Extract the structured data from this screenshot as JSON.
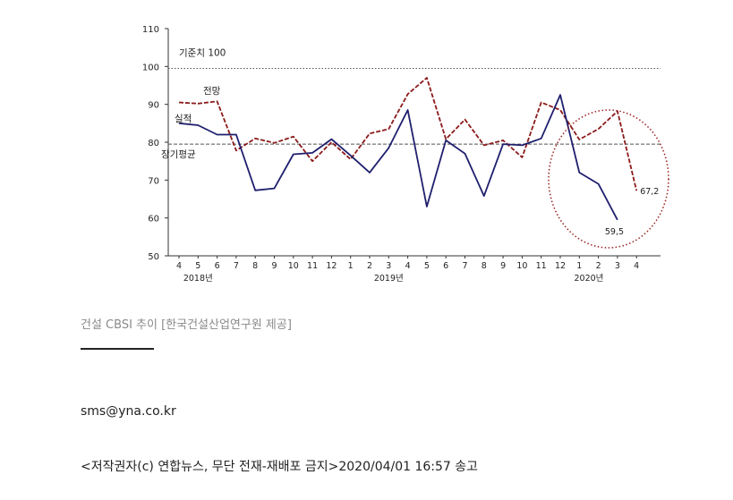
{
  "chart_data": {
    "type": "line",
    "categories": [
      "4",
      "5",
      "6",
      "7",
      "8",
      "9",
      "10",
      "11",
      "12",
      "1",
      "2",
      "3",
      "4",
      "5",
      "6",
      "7",
      "8",
      "9",
      "10",
      "11",
      "12",
      "1",
      "2",
      "3",
      "4"
    ],
    "year_labels": [
      {
        "label": "2018년",
        "index": 1
      },
      {
        "label": "2019년",
        "index": 11
      },
      {
        "label": "2020년",
        "index": 21.5
      }
    ],
    "ylim": [
      50,
      110
    ],
    "yticks": [
      50,
      60,
      70,
      80,
      90,
      100,
      110
    ],
    "series": [
      {
        "name": "실적",
        "style": "solid",
        "color": "#1f1f6e",
        "values": [
          85.0,
          84.5,
          82.0,
          82.0,
          67.3,
          67.8,
          76.8,
          77.2,
          80.8,
          76.5,
          72.0,
          78.5,
          88.5,
          63.0,
          80.5,
          77.0,
          65.8,
          79.5,
          79.2,
          81.0,
          92.5,
          72.0,
          69.0,
          59.5,
          null
        ]
      },
      {
        "name": "전망",
        "style": "dashed",
        "color": "#8b1a1a",
        "values": [
          90.5,
          90.2,
          90.8,
          77.8,
          81.0,
          79.8,
          81.5,
          75.0,
          80.0,
          75.5,
          82.3,
          83.5,
          92.7,
          97.0,
          80.8,
          86.0,
          79.2,
          80.5,
          76.0,
          90.5,
          88.5,
          80.7,
          83.5,
          88.2,
          67.2
        ]
      }
    ],
    "reference_lines": [
      {
        "label": "기준치 100",
        "value": 99.5,
        "style": "dotted",
        "color": "#555555"
      },
      {
        "label": "장기평균",
        "value": 79.5,
        "style": "dashed",
        "color": "#555555"
      }
    ],
    "annotations": [
      "59,5",
      "67,2"
    ]
  },
  "caption": "건설 CBSI 추이 [한국건설산업연구원 제공]",
  "email": "sms@yna.co.kr",
  "footer": "<저작권자(c) 연합뉴스, 무단 전재-재배포 금지>2020/04/01 16:57 송고"
}
